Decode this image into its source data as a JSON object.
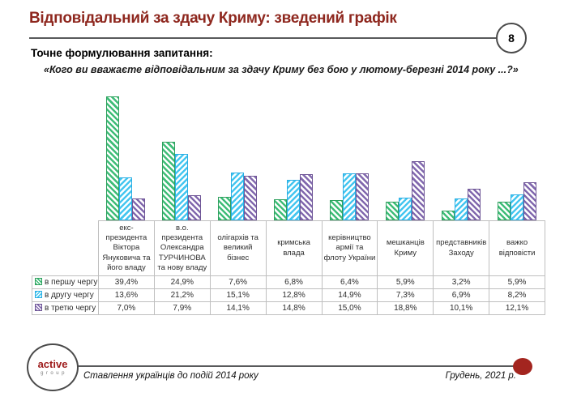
{
  "slide": {
    "title": "Відповідальний за здачу Криму: зведений графік",
    "page_number": "8",
    "question_label": "Точне формулювання запитання:",
    "question_quote": "«Кого ви вважаєте відповідальним за здачу Криму без бою у лютому-березні 2014 року ...?»"
  },
  "chart_data": {
    "type": "bar",
    "title": "Відповідальний за здачу Криму: зведений графік",
    "categories": [
      "екс-президента Віктора Януковича та його владу",
      "в.о. президента Олександра ТУРЧИНОВА та нову владу",
      "олігархів та великий бізнес",
      "кримська влада",
      "керівництво армії та флоту України",
      "мешканців Криму",
      "представників Заходу",
      "важко відповісти"
    ],
    "series": [
      {
        "name": "в першу чергу",
        "color": "#3fbd78",
        "hatch": "diagonal-down",
        "values": [
          39.4,
          24.9,
          7.6,
          6.8,
          6.4,
          5.9,
          3.2,
          5.9
        ],
        "values_display": [
          "39,4%",
          "24,9%",
          "7,6%",
          "6,8%",
          "6,4%",
          "5,9%",
          "3,2%",
          "5,9%"
        ]
      },
      {
        "name": "в другу чергу",
        "color": "#45c6f0",
        "hatch": "diagonal-up",
        "values": [
          13.6,
          21.2,
          15.1,
          12.8,
          14.9,
          7.3,
          6.9,
          8.2
        ],
        "values_display": [
          "13,6%",
          "21,2%",
          "15,1%",
          "12,8%",
          "14,9%",
          "7,3%",
          "6,9%",
          "8,2%"
        ]
      },
      {
        "name": "в третю чергу",
        "color": "#8269ae",
        "hatch": "diagonal-down",
        "values": [
          7.0,
          7.9,
          14.1,
          14.8,
          15.0,
          18.8,
          10.1,
          12.1
        ],
        "values_display": [
          "7,0%",
          "7,9%",
          "14,1%",
          "14,8%",
          "15,0%",
          "18,8%",
          "10,1%",
          "12,1%"
        ]
      }
    ],
    "xlabel": "",
    "ylabel": "",
    "ylim": [
      0,
      40
    ],
    "grid": false,
    "legend_position": "table-row-headers",
    "value_format": "percent-comma-decimal"
  },
  "footer": {
    "logo_line1": "active",
    "logo_line2": "group",
    "caption": "Ставлення українців до подій 2014 року",
    "date": "Грудень, 2021 р."
  }
}
